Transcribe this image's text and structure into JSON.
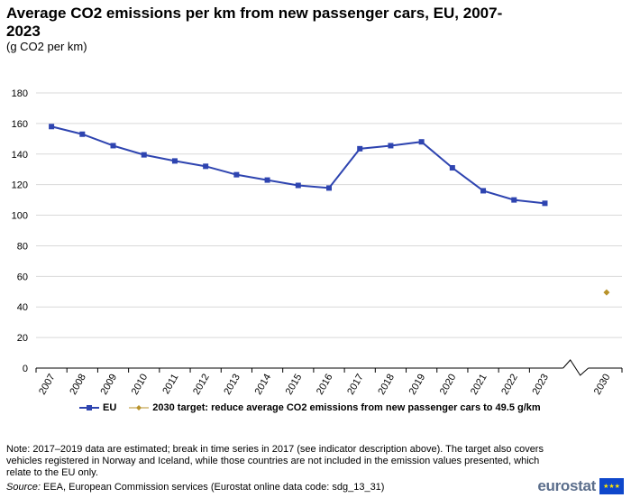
{
  "header": {
    "title": "Average CO2 emissions per km from new passenger cars, EU, 2007-2023",
    "subtitle": "(g CO2 per km)"
  },
  "chart_data": {
    "type": "line",
    "title": "Average CO2 emissions per km from new passenger cars, EU, 2007-2023",
    "ylabel": "g CO2 per km",
    "ylim": [
      0,
      180
    ],
    "yticks": [
      0,
      20,
      40,
      60,
      80,
      100,
      120,
      140,
      160,
      180
    ],
    "categories": [
      "2007",
      "2008",
      "2009",
      "2010",
      "2011",
      "2012",
      "2013",
      "2014",
      "2015",
      "2016",
      "2017",
      "2018",
      "2019",
      "2020",
      "2021",
      "2022",
      "2023",
      "",
      "2030"
    ],
    "series": [
      {
        "name": "EU",
        "color": "#2e44b0",
        "values": [
          158.0,
          153.0,
          145.5,
          139.5,
          135.5,
          132.0,
          126.5,
          123.0,
          119.5,
          117.8,
          143.5,
          145.5,
          148.0,
          131.0,
          116.0,
          110.0,
          107.8,
          null,
          null
        ]
      },
      {
        "name": "2030 target: reduce average CO2 emissions from new passenger cars to 49.5 g/km",
        "color": "#b8922a",
        "values": [
          null,
          null,
          null,
          null,
          null,
          null,
          null,
          null,
          null,
          null,
          null,
          null,
          null,
          null,
          null,
          null,
          null,
          null,
          49.5
        ]
      }
    ],
    "axis_break_between": [
      "2023",
      "2030"
    ],
    "grid": true,
    "legend_position": "bottom"
  },
  "legend": {
    "eu_label": "EU",
    "target_label": "2030 target: reduce average CO2 emissions from new passenger cars to 49.5 g/km"
  },
  "footer": {
    "note": "Note: 2017–2019 data are estimated; break in time series in 2017 (see indicator description above). The target also covers vehicles registered in Norway and Iceland, while those countries are not included in the emission values presented, which relate to the EU only.",
    "source_label": "Source:",
    "source_text": " EEA, European Commission services (Eurostat online data code: sdg_13_31)",
    "logo_text": "eurostat"
  }
}
